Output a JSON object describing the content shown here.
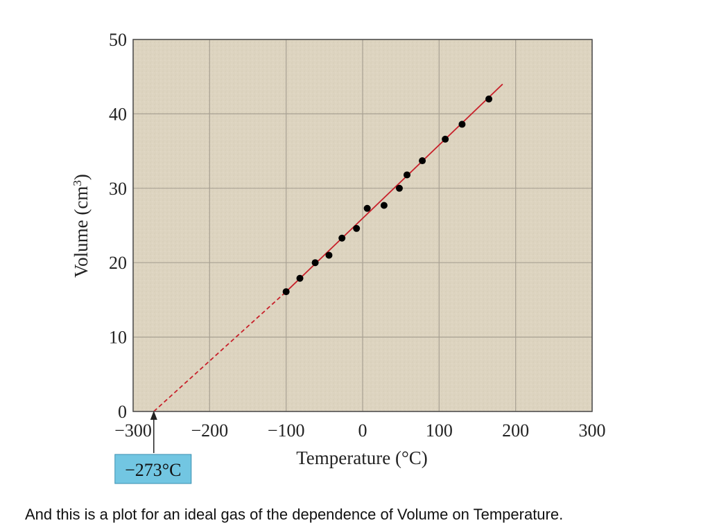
{
  "chart_data": {
    "type": "scatter",
    "xlabel": "Temperature (°C)",
    "ylabel_main": "Volume (cm",
    "ylabel_sup": "3",
    "ylabel_tail": ")",
    "xlim": [
      -300,
      300
    ],
    "ylim": [
      0,
      50
    ],
    "x_ticks": [
      -300,
      -200,
      -100,
      0,
      100,
      200,
      300
    ],
    "x_tick_labels": [
      "−300",
      "−200",
      "−100",
      "0",
      "100",
      "200",
      "300"
    ],
    "y_ticks": [
      0,
      10,
      20,
      30,
      40,
      50
    ],
    "y_tick_labels": [
      "0",
      "10",
      "20",
      "30",
      "40",
      "50"
    ],
    "grid": true,
    "series": [
      {
        "x": [
          -100,
          -82,
          -62,
          -44,
          -27,
          -8,
          6,
          28,
          48,
          58,
          78,
          108,
          130,
          165
        ],
        "y": [
          16.1,
          17.9,
          20.0,
          21.0,
          23.3,
          24.6,
          27.3,
          27.7,
          30.0,
          31.8,
          33.7,
          36.6,
          38.6,
          42.0
        ]
      }
    ],
    "fit_line": {
      "x_start": -273,
      "x_dash_end": -100,
      "x_end": 183,
      "y_start": 0,
      "y_dash_end": 16.1,
      "y_end": 44
    },
    "annotation": {
      "text": "−273°C",
      "x": -273
    },
    "colors": {
      "plot_bg": "#ddd4c0",
      "grid": "#a8a193",
      "frame": "#4a4a4a",
      "line": "#c8202a",
      "marker": "#000000",
      "callout_bg": "#72c6e2"
    }
  },
  "caption": "And this is a plot for an ideal gas of the dependence of Volume on Temperature."
}
